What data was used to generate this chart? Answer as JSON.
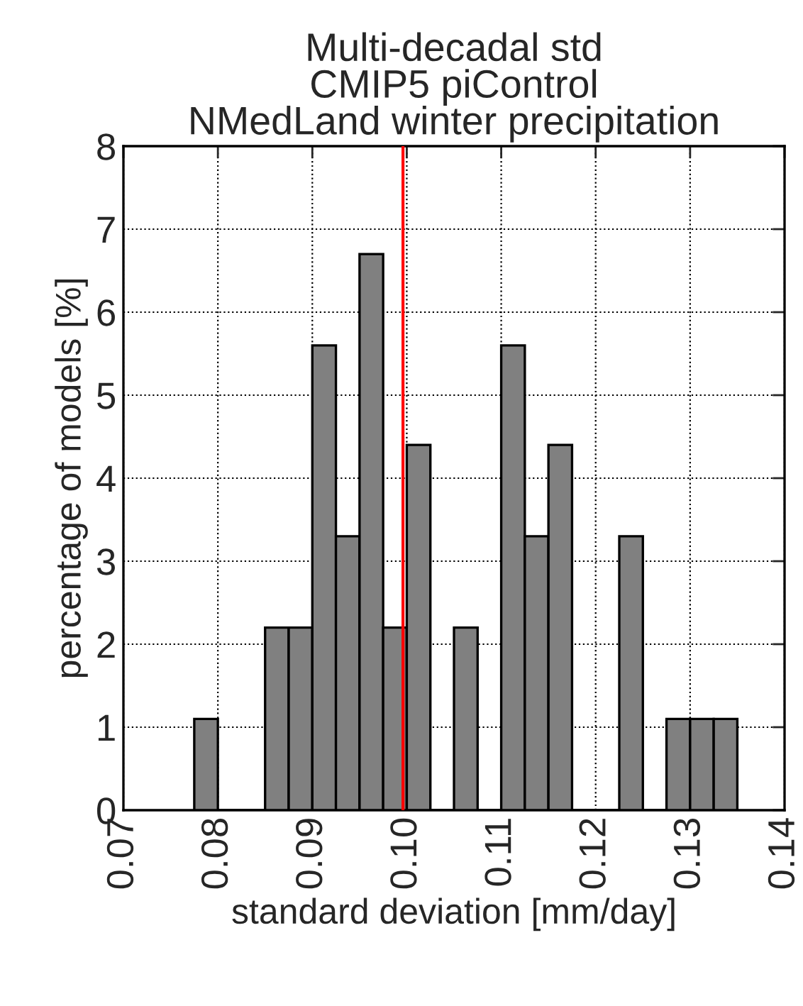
{
  "chart_data": {
    "type": "histogram",
    "title": "Multi-decadal std\nCMIP5 piControl\nNMedLand winter precipitation",
    "xlabel": "standard deviation [mm/day]",
    "ylabel": "percentage of models [%]",
    "bins": [
      0.0775,
      0.08,
      0.0825,
      0.085,
      0.0875,
      0.09,
      0.0925,
      0.095,
      0.0975,
      0.1,
      0.1025,
      0.105,
      0.1075,
      0.11,
      0.1125,
      0.115,
      0.1175,
      0.12,
      0.1225,
      0.125,
      0.1275,
      0.13,
      0.1325,
      0.135
    ],
    "values": [
      1.1,
      0,
      0,
      2.2,
      2.2,
      5.6,
      3.3,
      6.7,
      2.2,
      4.4,
      0,
      2.2,
      0,
      5.6,
      3.3,
      4.4,
      0,
      0,
      3.3,
      0,
      1.1,
      1.1,
      1.1
    ],
    "color": "#808080",
    "xlim": [
      0.07,
      0.14
    ],
    "xticks": [
      {
        "value": 0.07,
        "label": "0.07"
      },
      {
        "value": 0.08,
        "label": "0.08"
      },
      {
        "value": 0.09,
        "label": "0.09"
      },
      {
        "value": 0.1,
        "label": "0.10"
      },
      {
        "value": 0.11,
        "label": "0.11"
      },
      {
        "value": 0.12,
        "label": "0.12"
      },
      {
        "value": 0.13,
        "label": "0.13"
      },
      {
        "value": 0.14,
        "label": "0.14"
      }
    ],
    "ylim": [
      0,
      8
    ],
    "yticks": [
      0,
      1,
      2,
      3,
      4,
      5,
      6,
      7,
      8
    ],
    "ref_lines": [
      {
        "axis": "x",
        "value": 0.0996,
        "color": "#ff0000"
      }
    ],
    "grid": true
  }
}
